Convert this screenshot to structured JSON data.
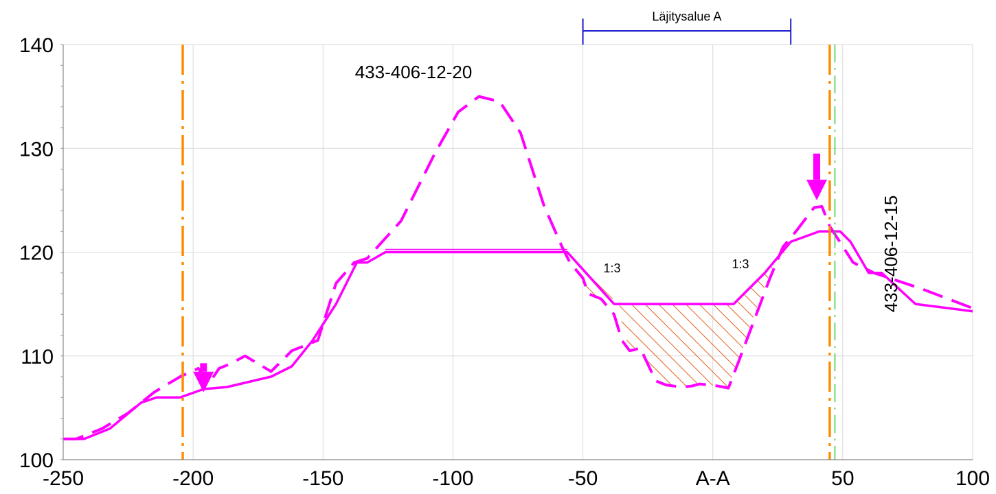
{
  "chart_data": {
    "type": "line",
    "title": "",
    "xlabel": "",
    "ylabel": "",
    "xlim": [
      -250,
      100
    ],
    "ylim": [
      100,
      140
    ],
    "x_ticks": [
      -250,
      -200,
      -150,
      -100,
      -50,
      0,
      50,
      100
    ],
    "x_tick_labels": [
      "-250",
      "-200",
      "-150",
      "-100",
      "-50",
      "A-A",
      "50",
      "100"
    ],
    "y_ticks": [
      100,
      110,
      120,
      130,
      140
    ],
    "y_tick_labels": [
      "100",
      "110",
      "120",
      "130",
      "140"
    ],
    "grid": true,
    "colors": {
      "profile": "#ff00ff",
      "boundary": "#ff8c00",
      "green_line": "#33cc33",
      "hatch": "#e06020",
      "bracket": "#1a1acc",
      "grid": "#d9d9d9"
    },
    "series": [
      {
        "style": "solid",
        "x": [
          -250,
          -242,
          -232,
          -220,
          -214,
          -205,
          -196,
          -187,
          -170,
          -162,
          -154,
          -145,
          -137,
          -133,
          -126,
          -56,
          -38,
          -36,
          8,
          20,
          30,
          41,
          49,
          53,
          60,
          65,
          78,
          100
        ],
        "y": [
          102,
          102,
          103,
          105.5,
          106,
          106,
          106.8,
          107,
          108,
          109,
          111.5,
          115,
          119,
          119,
          120,
          120,
          115,
          115,
          115,
          118,
          121,
          122,
          122,
          121,
          118,
          118,
          115,
          114.3
        ]
      },
      {
        "style": "dashed",
        "x": [
          -250,
          -245,
          -235,
          -225,
          -215,
          -205,
          -198,
          -194,
          -190,
          -186,
          -180,
          -170,
          -162,
          -152,
          -145,
          -138,
          -133,
          -120,
          -107,
          -98,
          -90,
          -82,
          -74,
          -65,
          -58,
          -55,
          -50,
          -48,
          -43,
          -38,
          -35,
          -32,
          -30,
          -28,
          -22,
          -18,
          -12,
          -8,
          -5,
          2,
          6,
          10,
          16,
          22,
          27,
          32,
          39,
          42,
          45,
          54,
          62,
          80,
          100
        ],
        "y": [
          102,
          102,
          103,
          104.5,
          106.5,
          108,
          108.8,
          107.3,
          108.8,
          109.2,
          110,
          108.5,
          110.5,
          111.5,
          117,
          119,
          119.4,
          123,
          129.5,
          133.5,
          135,
          134.5,
          131.5,
          124.5,
          120.5,
          119,
          117.5,
          116,
          115.5,
          114,
          111.5,
          110.5,
          110.6,
          110.8,
          107.6,
          107.2,
          107,
          107.1,
          107.3,
          107.1,
          106.9,
          109.5,
          113.5,
          117.5,
          120.5,
          122,
          124.3,
          124.4,
          122.5,
          119,
          118,
          116.5,
          114.6
        ]
      }
    ],
    "annotations": {
      "top_left_label": "433-406-12-20",
      "right_label": "433-406-12-15",
      "bracket_label": "Läjitysalue A",
      "bracket_x": [
        -50,
        30
      ],
      "slope_label_left": "1:3",
      "slope_label_right": "1:3",
      "boundary_lines_x": [
        -204,
        45
      ],
      "green_line_x": 47,
      "arrows": [
        {
          "x": -196,
          "from_y": 109.3,
          "to_y": 106.5
        },
        {
          "x": 40,
          "from_y": 129.5,
          "to_y": 125
        }
      ],
      "hatched_regions": [
        {
          "x": [
            -56,
            -48,
            -38,
            -45,
            -50
          ],
          "y": [
            120,
            118,
            115.5,
            115.5,
            117
          ]
        },
        {
          "x": [
            -36,
            8,
            20,
            30,
            28,
            22,
            16,
            10,
            6,
            2,
            -5,
            -12,
            -18,
            -22,
            -28,
            -30,
            -32,
            -35
          ],
          "y": [
            115,
            115,
            118,
            120.5,
            121,
            118,
            114,
            109.5,
            107,
            107.1,
            107.3,
            107,
            107.2,
            107.6,
            110.8,
            110.6,
            110.5,
            113
          ]
        }
      ]
    }
  }
}
